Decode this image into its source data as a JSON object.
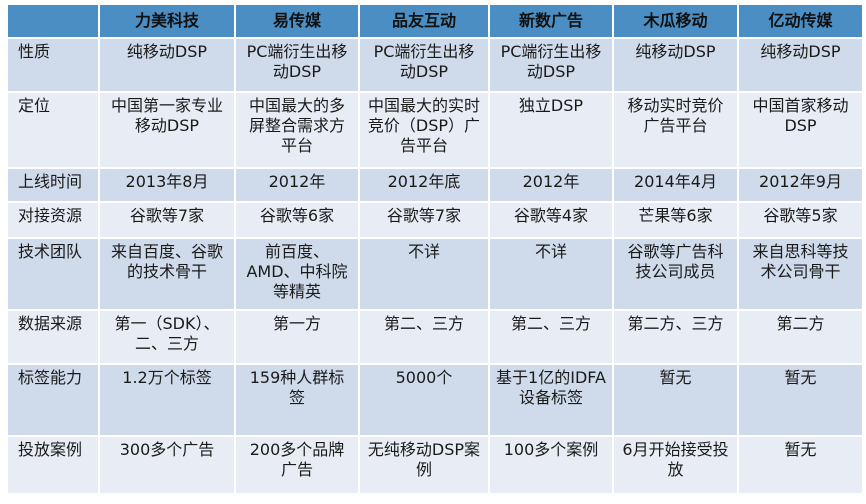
{
  "columns": [
    "",
    "力美科技",
    "易传媒",
    "品友互动",
    "新数广告",
    "木瓜移动",
    "亿动传媒"
  ],
  "rows": [
    {
      "label": "性质",
      "cells": [
        "纯移动DSP",
        "PC端衍生出移动DSP",
        "PC端衍生出移动DSP",
        "PC端衍生出移动DSP",
        "纯移动DSP",
        "纯移动DSP"
      ]
    },
    {
      "label": "定位",
      "cells": [
        "中国第一家专业移动DSP",
        "中国最大的多屏整合需求方平台",
        "中国最大的实时竞价（DSP）广告平台",
        "独立DSP",
        "移动实时竞价广告平台",
        "中国首家移动DSP"
      ]
    },
    {
      "label": "上线时间",
      "cells": [
        "2013年8月",
        "2012年",
        "2012年底",
        "2012年",
        "2014年4月",
        "2012年9月"
      ]
    },
    {
      "label": "对接资源",
      "cells": [
        "谷歌等7家",
        "谷歌等6家",
        "谷歌等7家",
        "谷歌等4家",
        "芒果等6家",
        "谷歌等5家"
      ]
    },
    {
      "label": "技术团队",
      "cells": [
        "来自百度、谷歌的技术骨干",
        "前百度、AMD、中科院等精英",
        "不详",
        "不详",
        "谷歌等广告科技公司成员",
        "来自思科等技术公司骨干"
      ]
    },
    {
      "label": "数据来源",
      "cells": [
        "第一（SDK）、二、三方",
        "第一方",
        "第二、三方",
        "第二、三方",
        "第二方、三方",
        "第二方"
      ]
    },
    {
      "label": "标签能力",
      "cells": [
        "1.2万个标签",
        "159种人群标签",
        "5000个",
        "基于1亿的IDFA设备标签",
        "暂无",
        "暂无"
      ]
    },
    {
      "label": "投放案例",
      "cells": [
        "300多个广告",
        "200多个品牌广告",
        "无纯移动DSP案例",
        "100多个案例",
        "6月开始接受投放",
        "暂无"
      ]
    }
  ]
}
